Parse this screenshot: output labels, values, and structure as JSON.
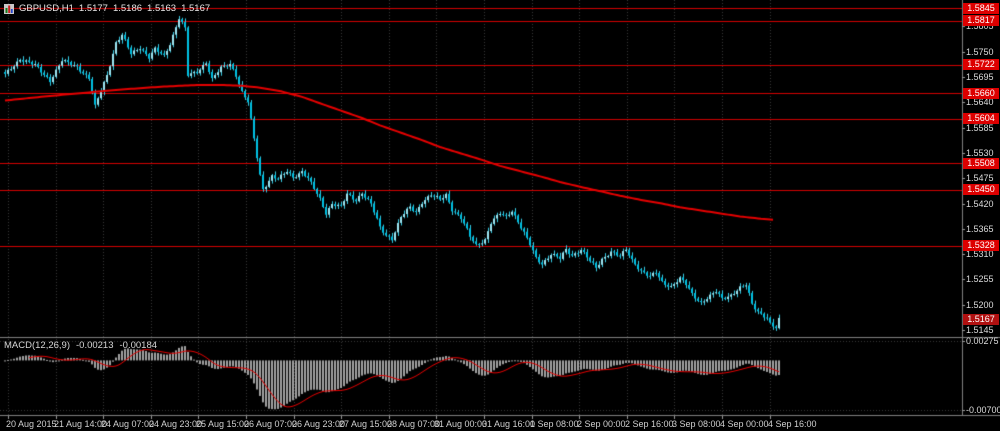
{
  "chart_data": {
    "type": "candlestick",
    "title": "GBPUSD,H1",
    "symbol": "GBPUSD",
    "timeframe": "H1",
    "ohlc_readout": {
      "open": "1.5177",
      "high": "1.5186",
      "low": "1.5163",
      "close": "1.5167"
    },
    "current_price": "1.5167",
    "y_ticks": [
      "1.5805",
      "1.5750",
      "1.5695",
      "1.5640",
      "1.5585",
      "1.5530",
      "1.5475",
      "1.5420",
      "1.5365",
      "1.5310",
      "1.5255",
      "1.5200",
      "1.5145"
    ],
    "x_ticks": [
      "20 Aug 2015",
      "21 Aug 14:00",
      "24 Aug 07:00",
      "24 Aug 23:00",
      "25 Aug 15:00",
      "26 Aug 07:00",
      "26 Aug 23:00",
      "27 Aug 15:00",
      "28 Aug 07:00",
      "31 Aug 00:00",
      "31 Aug 16:00",
      "1 Sep 08:00",
      "2 Sep 00:00",
      "2 Sep 16:00",
      "3 Sep 08:00",
      "4 Sep 00:00",
      "4 Sep 16:00"
    ],
    "resistance_levels": [
      "1.5845",
      "1.5817",
      "1.5722",
      "1.5660",
      "1.5604",
      "1.5508",
      "1.5450",
      "1.5328"
    ],
    "price_range": [
      1.513,
      1.58625
    ],
    "bars": 259,
    "close_anchors": [
      [
        0,
        1.57
      ],
      [
        5,
        1.5735
      ],
      [
        10,
        1.572
      ],
      [
        15,
        1.5688
      ],
      [
        19,
        1.573
      ],
      [
        24,
        1.5718
      ],
      [
        28,
        1.5692
      ],
      [
        30,
        1.563
      ],
      [
        34,
        1.57
      ],
      [
        37,
        1.577
      ],
      [
        39,
        1.5786
      ],
      [
        42,
        1.5745
      ],
      [
        45,
        1.576
      ],
      [
        48,
        1.5738
      ],
      [
        50,
        1.5755
      ],
      [
        53,
        1.574
      ],
      [
        55,
        1.5768
      ],
      [
        58,
        1.5824
      ],
      [
        60,
        1.58
      ],
      [
        61,
        1.5698
      ],
      [
        64,
        1.5706
      ],
      [
        67,
        1.5728
      ],
      [
        69,
        1.569
      ],
      [
        72,
        1.5714
      ],
      [
        75,
        1.5724
      ],
      [
        77,
        1.57
      ],
      [
        79,
        1.5662
      ],
      [
        81,
        1.564
      ],
      [
        83,
        1.556
      ],
      [
        85,
        1.5482
      ],
      [
        86,
        1.5452
      ],
      [
        89,
        1.548
      ],
      [
        91,
        1.5472
      ],
      [
        94,
        1.549
      ],
      [
        96,
        1.5478
      ],
      [
        99,
        1.549
      ],
      [
        101,
        1.5474
      ],
      [
        105,
        1.543
      ],
      [
        107,
        1.54
      ],
      [
        109,
        1.542
      ],
      [
        112,
        1.5412
      ],
      [
        114,
        1.544
      ],
      [
        117,
        1.5428
      ],
      [
        119,
        1.5444
      ],
      [
        122,
        1.5418
      ],
      [
        125,
        1.5368
      ],
      [
        127,
        1.5352
      ],
      [
        129,
        1.5344
      ],
      [
        132,
        1.539
      ],
      [
        135,
        1.5412
      ],
      [
        137,
        1.5402
      ],
      [
        139,
        1.5424
      ],
      [
        142,
        1.5438
      ],
      [
        145,
        1.5428
      ],
      [
        147,
        1.544
      ],
      [
        149,
        1.5408
      ],
      [
        152,
        1.5388
      ],
      [
        155,
        1.5348
      ],
      [
        157,
        1.533
      ],
      [
        160,
        1.5342
      ],
      [
        162,
        1.5378
      ],
      [
        165,
        1.5398
      ],
      [
        167,
        1.5392
      ],
      [
        169,
        1.5406
      ],
      [
        172,
        1.5368
      ],
      [
        175,
        1.533
      ],
      [
        177,
        1.5302
      ],
      [
        179,
        1.529
      ],
      [
        182,
        1.531
      ],
      [
        185,
        1.53
      ],
      [
        187,
        1.532
      ],
      [
        189,
        1.5308
      ],
      [
        192,
        1.532
      ],
      [
        195,
        1.5294
      ],
      [
        197,
        1.528
      ],
      [
        199,
        1.53
      ],
      [
        202,
        1.5316
      ],
      [
        205,
        1.5304
      ],
      [
        207,
        1.532
      ],
      [
        209,
        1.5298
      ],
      [
        212,
        1.5274
      ],
      [
        215,
        1.526
      ],
      [
        217,
        1.527
      ],
      [
        219,
        1.525
      ],
      [
        222,
        1.524
      ],
      [
        225,
        1.5256
      ],
      [
        227,
        1.5244
      ],
      [
        229,
        1.5224
      ],
      [
        232,
        1.5205
      ],
      [
        235,
        1.5218
      ],
      [
        237,
        1.5228
      ],
      [
        239,
        1.5214
      ],
      [
        242,
        1.5222
      ],
      [
        245,
        1.5236
      ],
      [
        247,
        1.5242
      ],
      [
        249,
        1.5202
      ],
      [
        251,
        1.5186
      ],
      [
        254,
        1.5172
      ],
      [
        255,
        1.5158
      ],
      [
        257,
        1.5148
      ],
      [
        258,
        1.5167
      ]
    ],
    "ma_anchors": [
      [
        0,
        1.5644
      ],
      [
        12,
        1.5652
      ],
      [
        25,
        1.566
      ],
      [
        39,
        1.5668
      ],
      [
        52,
        1.5674
      ],
      [
        65,
        1.5678
      ],
      [
        72,
        1.5678
      ],
      [
        79,
        1.5676
      ],
      [
        85,
        1.5672
      ],
      [
        92,
        1.5664
      ],
      [
        99,
        1.5652
      ],
      [
        105,
        1.5638
      ],
      [
        112,
        1.5622
      ],
      [
        119,
        1.5606
      ],
      [
        125,
        1.559
      ],
      [
        132,
        1.5574
      ],
      [
        139,
        1.5558
      ],
      [
        145,
        1.5543
      ],
      [
        152,
        1.5529
      ],
      [
        159,
        1.5515
      ],
      [
        165,
        1.5502
      ],
      [
        172,
        1.549
      ],
      [
        179,
        1.5478
      ],
      [
        185,
        1.5467
      ],
      [
        192,
        1.5456
      ],
      [
        199,
        1.5446
      ],
      [
        205,
        1.5437
      ],
      [
        212,
        1.5428
      ],
      [
        219,
        1.542
      ],
      [
        225,
        1.5412
      ],
      [
        232,
        1.5405
      ],
      [
        239,
        1.5398
      ],
      [
        245,
        1.5392
      ],
      [
        252,
        1.5387
      ],
      [
        256,
        1.5385
      ]
    ],
    "macd": {
      "label": "MACD(12,26,9)",
      "fast": 12,
      "slow": 26,
      "signal_period": 9,
      "main_value": "-0.00213",
      "signal_value": "-0.00184",
      "y_ticks": [
        "0.00275",
        "-0.00700"
      ],
      "range": [
        -0.00756,
        0.00288
      ]
    },
    "colors": {
      "background": "#000000",
      "grid": "#3a3a3a",
      "candle_up": "#9fe8f5",
      "candle_down": "#00c2e4",
      "wick": "#36cde6",
      "level_line": "#d40000",
      "level_box": "#dd0000",
      "current_price_box": "#b01010",
      "ma_line": "#e60000",
      "macd_bar": "#a2a2a2",
      "macd_signal": "#e60000",
      "axis_text": "#dcdcdc",
      "separator": "#808080"
    }
  }
}
